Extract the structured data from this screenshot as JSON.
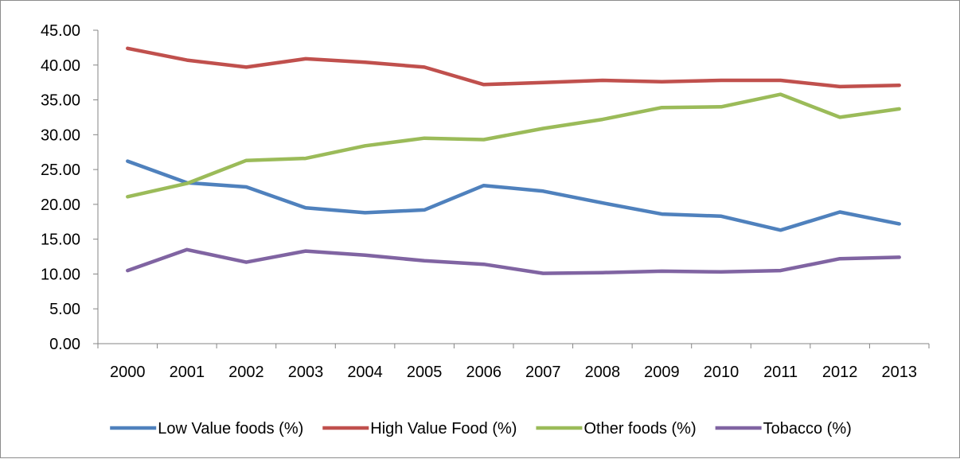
{
  "chart_data": {
    "type": "line",
    "title": "",
    "xlabel": "",
    "ylabel": "",
    "categories": [
      "2000",
      "2001",
      "2002",
      "2003",
      "2004",
      "2005",
      "2006",
      "2007",
      "2008",
      "2009",
      "2010",
      "2011",
      "2012",
      "2013"
    ],
    "ylim": [
      0,
      45
    ],
    "y_ticks": [
      "0.00",
      "5.00",
      "10.00",
      "15.00",
      "20.00",
      "25.00",
      "30.00",
      "35.00",
      "40.00",
      "45.00"
    ],
    "grid": false,
    "legend_position": "bottom",
    "series": [
      {
        "name": "Low Value foods (%)",
        "color": "#4f81bd",
        "values": [
          26.2,
          23.1,
          22.5,
          19.5,
          18.8,
          19.2,
          22.7,
          21.9,
          20.2,
          18.6,
          18.3,
          16.3,
          18.9,
          17.2
        ]
      },
      {
        "name": "High Value Food (%)",
        "color": "#c0504d",
        "values": [
          42.4,
          40.7,
          39.7,
          40.9,
          40.4,
          39.7,
          37.2,
          37.5,
          37.8,
          37.6,
          37.8,
          37.8,
          36.9,
          37.1
        ]
      },
      {
        "name": "Other foods (%)",
        "color": "#9bbb59",
        "values": [
          21.1,
          23.0,
          26.3,
          26.6,
          28.4,
          29.5,
          29.3,
          30.9,
          32.2,
          33.9,
          34.0,
          35.8,
          32.5,
          33.7
        ]
      },
      {
        "name": "Tobacco (%)",
        "color": "#8064a2",
        "values": [
          10.5,
          13.5,
          11.7,
          13.3,
          12.7,
          11.9,
          11.4,
          10.1,
          10.2,
          10.4,
          10.3,
          10.5,
          12.2,
          12.4
        ]
      }
    ]
  }
}
